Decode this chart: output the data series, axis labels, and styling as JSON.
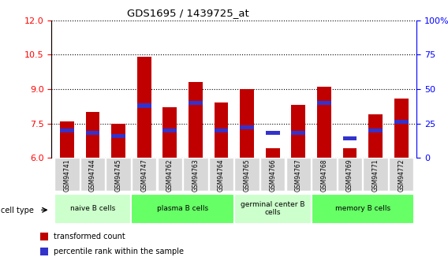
{
  "title": "GDS1695 / 1439725_at",
  "samples": [
    "GSM94741",
    "GSM94744",
    "GSM94745",
    "GSM94747",
    "GSM94762",
    "GSM94763",
    "GSM94764",
    "GSM94765",
    "GSM94766",
    "GSM94767",
    "GSM94768",
    "GSM94769",
    "GSM94771",
    "GSM94772"
  ],
  "transformed_count": [
    7.6,
    8.0,
    7.5,
    10.4,
    8.2,
    9.3,
    8.4,
    9.0,
    6.4,
    8.3,
    9.1,
    6.4,
    7.9,
    8.6
  ],
  "percentile_rank": [
    20,
    18,
    16,
    38,
    20,
    40,
    20,
    22,
    18,
    18,
    40,
    14,
    20,
    26
  ],
  "y_min": 6,
  "y_max": 12,
  "y_ticks": [
    6,
    7.5,
    9,
    10.5,
    12
  ],
  "y_right_ticks": [
    0,
    25,
    50,
    75,
    100
  ],
  "bar_color": "#c00000",
  "blue_color": "#3333cc",
  "cell_groups": [
    {
      "label": "naive B cells",
      "start": 0,
      "end": 3,
      "color": "#ccffcc"
    },
    {
      "label": "plasma B cells",
      "start": 3,
      "end": 7,
      "color": "#66ff66"
    },
    {
      "label": "germinal center B\ncells",
      "start": 7,
      "end": 10,
      "color": "#ccffcc"
    },
    {
      "label": "memory B cells",
      "start": 10,
      "end": 14,
      "color": "#66ff66"
    }
  ],
  "legend_red_label": "transformed count",
  "legend_blue_label": "percentile rank within the sample",
  "cell_type_label": "cell type",
  "bar_width": 0.55
}
